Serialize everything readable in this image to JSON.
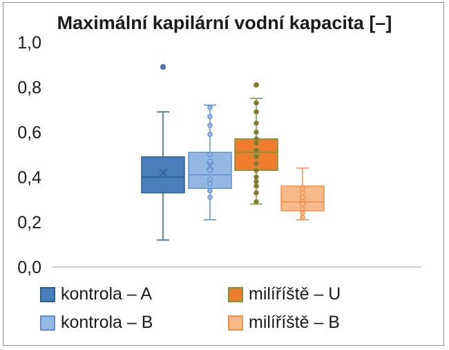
{
  "chart_data": {
    "type": "boxplot",
    "title": "Maximální kapilární vodní kapacita [–]",
    "ylim": [
      0,
      1
    ],
    "yticks": [
      "1,0",
      "0,8",
      "0,6",
      "0,4",
      "0,2",
      "0,0"
    ],
    "ytick_values": [
      1.0,
      0.8,
      0.6,
      0.4,
      0.2,
      0.0
    ],
    "grid": false,
    "legend_position": "bottom",
    "series": [
      {
        "name": "kontrola – A",
        "fill": "#4a7ebb",
        "stroke": "#2e5d94",
        "min": 0.12,
        "q1": 0.33,
        "median": 0.4,
        "q3": 0.49,
        "max": 0.69,
        "mean": 0.42,
        "outliers": [
          0.89
        ],
        "points": []
      },
      {
        "name": "kontrola – B",
        "fill": "#95b8e3",
        "stroke": "#5b8fd0",
        "min": 0.21,
        "q1": 0.35,
        "median": 0.41,
        "q3": 0.51,
        "max": 0.72,
        "mean": 0.45,
        "outliers": [],
        "points": [
          0.31,
          0.34,
          0.37,
          0.39,
          0.43,
          0.47,
          0.5,
          0.59,
          0.63,
          0.67,
          0.71
        ]
      },
      {
        "name": "milíříště – U",
        "fill": "#ef7d2d",
        "stroke": "#6e9a3a",
        "min": 0.28,
        "q1": 0.43,
        "median": 0.51,
        "q3": 0.57,
        "max": 0.75,
        "mean": 0.51,
        "outliers": [
          0.81
        ],
        "points": [
          0.29,
          0.33,
          0.36,
          0.38,
          0.4,
          0.43,
          0.46,
          0.49,
          0.52,
          0.55,
          0.57,
          0.6,
          0.64,
          0.69,
          0.73
        ]
      },
      {
        "name": "milíříště – B",
        "fill": "#f8b98a",
        "stroke": "#f28e45",
        "min": 0.21,
        "q1": 0.25,
        "median": 0.29,
        "q3": 0.36,
        "max": 0.44,
        "mean": 0.3,
        "outliers": [],
        "points": [
          0.22,
          0.24,
          0.26,
          0.28,
          0.3,
          0.31,
          0.33,
          0.35
        ]
      }
    ]
  }
}
